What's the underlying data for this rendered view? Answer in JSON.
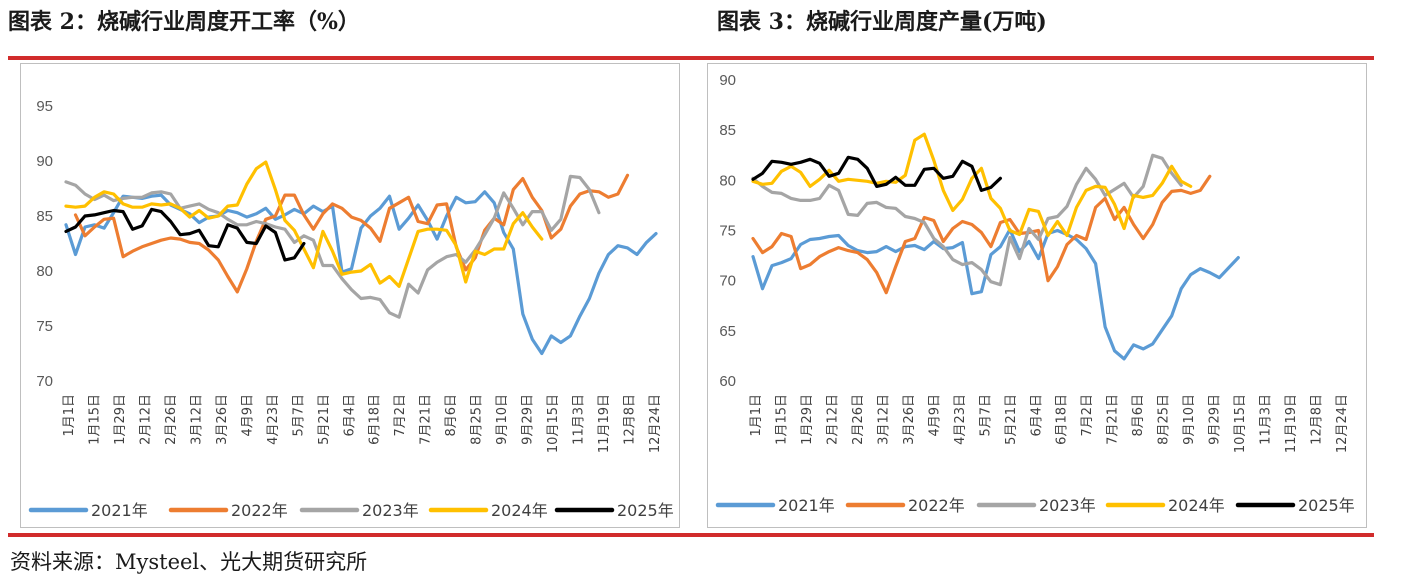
{
  "titles": {
    "left": "图表 2：烧碱行业周度开工率（%）",
    "right": "图表 3：烧碱行业周度产量(万吨)"
  },
  "source": "资料来源：Mysteel、光大期货研究所",
  "colors": {
    "rule": "#d12b2b"
  },
  "chart_data": [
    {
      "type": "line",
      "title": "图表 2：烧碱行业周度开工率（%）",
      "ylim": [
        70,
        95
      ],
      "yticks": [
        "70",
        "75",
        "80",
        "85",
        "90",
        "95"
      ],
      "grid": false,
      "legend_position": "bottom",
      "x_labels": [
        "1月1日",
        "1月15日",
        "1月29日",
        "2月12日",
        "2月26日",
        "3月12日",
        "3月26日",
        "4月9日",
        "4月23日",
        "5月7日",
        "5月21日",
        "6月4日",
        "6月18日",
        "7月2日",
        "7月21日",
        "8月6日",
        "8月25日",
        "9月10日",
        "9月29日",
        "10月15日",
        "11月3日",
        "11月19日",
        "12月8日",
        "12月24日"
      ],
      "series": [
        {
          "name": "2021年",
          "color": "#5b9bd5",
          "values": [
            84.2,
            81.5,
            84.0,
            84.2,
            83.9,
            85.3,
            86.8,
            86.7,
            86.6,
            86.8,
            86.9,
            86.0,
            85.6,
            85.2,
            84.4,
            84.9,
            85.0,
            85.5,
            85.3,
            84.9,
            85.2,
            85.7,
            84.7,
            85.1,
            85.6,
            85.2,
            85.9,
            85.4,
            85.9,
            79.9,
            80.2,
            83.9,
            85.0,
            85.7,
            86.8,
            83.8,
            84.8,
            86.0,
            84.6,
            82.9,
            85.0,
            86.7,
            86.2,
            86.3,
            87.2,
            86.2,
            83.5,
            82.0,
            76.1,
            73.8,
            72.5,
            74.1,
            73.5,
            74.1,
            75.9,
            77.5,
            79.8,
            81.5,
            82.3,
            82.1,
            81.5,
            82.6,
            83.4
          ]
        },
        {
          "name": "2022年",
          "color": "#ed7d31",
          "values": [
            null,
            85.1,
            83.2,
            84.0,
            84.7,
            84.8,
            81.3,
            81.8,
            82.2,
            82.5,
            82.8,
            83.0,
            82.9,
            82.6,
            82.5,
            81.9,
            81.0,
            79.5,
            78.1,
            80.2,
            82.7,
            84.7,
            85.0,
            86.9,
            86.9,
            85.1,
            83.8,
            85.2,
            86.1,
            85.7,
            84.9,
            84.6,
            83.9,
            82.7,
            85.7,
            86.2,
            86.7,
            84.5,
            84.3,
            86.0,
            86.1,
            82.2,
            80.1,
            81.2,
            83.7,
            84.8,
            84.2,
            87.4,
            88.4,
            86.7,
            85.5,
            83.0,
            83.8,
            85.9,
            87.0,
            87.3,
            87.2,
            86.7,
            87.0,
            88.7
          ]
        },
        {
          "name": "2023年",
          "color": "#a5a5a5",
          "values": [
            88.1,
            87.8,
            87.0,
            86.5,
            86.9,
            86.4,
            86.6,
            86.7,
            86.7,
            87.1,
            87.2,
            87.0,
            85.7,
            85.9,
            86.1,
            85.6,
            85.3,
            84.7,
            84.2,
            84.2,
            84.5,
            84.3,
            84.0,
            83.8,
            82.6,
            83.2,
            82.8,
            80.5,
            80.5,
            79.3,
            78.3,
            77.5,
            77.6,
            77.4,
            76.2,
            75.8,
            78.8,
            78.0,
            80.1,
            80.8,
            81.3,
            81.5,
            80.8,
            81.9,
            83.3,
            84.8,
            87.1,
            85.7,
            84.2,
            85.4,
            85.4,
            83.7,
            84.7,
            88.6,
            88.5,
            87.4,
            85.3
          ]
        },
        {
          "name": "2024年",
          "color": "#ffc000",
          "values": [
            85.9,
            85.8,
            85.9,
            86.7,
            87.2,
            87.0,
            86.1,
            85.8,
            85.8,
            86.1,
            86.0,
            86.1,
            85.7,
            84.9,
            85.5,
            84.8,
            85.0,
            85.9,
            86.0,
            87.9,
            89.3,
            89.9,
            87.4,
            84.6,
            83.7,
            82.0,
            80.3,
            83.6,
            81.8,
            79.7,
            79.9,
            80.0,
            80.6,
            78.9,
            79.5,
            78.6,
            81.1,
            83.6,
            83.8,
            83.8,
            83.7,
            82.3,
            79.0,
            81.8,
            81.5,
            82.0,
            82.0,
            84.3,
            85.3,
            84.0,
            82.9
          ]
        },
        {
          "name": "2025年",
          "color": "#000000",
          "values": [
            83.6,
            84.0,
            85.0,
            85.1,
            85.3,
            85.5,
            85.4,
            83.8,
            84.1,
            85.6,
            85.4,
            84.5,
            83.3,
            83.4,
            83.7,
            82.3,
            82.2,
            84.2,
            83.9,
            82.6,
            82.5,
            84.1,
            83.5,
            81.0,
            81.2,
            82.5
          ]
        }
      ]
    },
    {
      "type": "line",
      "title": "图表 3：烧碱行业周度产量(万吨)",
      "ylim": [
        60,
        90
      ],
      "yticks": [
        "60",
        "65",
        "70",
        "75",
        "80",
        "85",
        "90"
      ],
      "grid": false,
      "legend_position": "bottom",
      "x_labels": [
        "1月1日",
        "1月15日",
        "1月29日",
        "2月12日",
        "2月26日",
        "3月12日",
        "3月26日",
        "4月9日",
        "4月23日",
        "5月7日",
        "5月21日",
        "6月4日",
        "6月18日",
        "7月2日",
        "7月21日",
        "8月6日",
        "8月25日",
        "9月10日",
        "9月29日",
        "10月15日",
        "11月3日",
        "11月19日",
        "12月8日",
        "12月24日"
      ],
      "series": [
        {
          "name": "2021年",
          "color": "#5b9bd5",
          "values": [
            72.4,
            69.2,
            71.5,
            71.8,
            72.2,
            73.6,
            74.1,
            74.2,
            74.4,
            74.5,
            73.5,
            73.0,
            72.8,
            72.9,
            73.4,
            72.9,
            73.4,
            73.5,
            73.1,
            73.9,
            73.2,
            73.3,
            73.8,
            68.7,
            68.9,
            72.6,
            73.4,
            75.1,
            72.9,
            73.9,
            72.2,
            74.7,
            75.0,
            74.6,
            74.1,
            73.2,
            71.7,
            65.4,
            63.0,
            62.2,
            63.6,
            63.2,
            63.7,
            65.1,
            66.5,
            69.2,
            70.6,
            71.2,
            70.8,
            70.3,
            71.3,
            72.3
          ]
        },
        {
          "name": "2022年",
          "color": "#ed7d31",
          "values": [
            74.2,
            72.8,
            73.4,
            74.7,
            74.4,
            71.2,
            71.6,
            72.4,
            72.9,
            73.3,
            73.0,
            72.8,
            72.1,
            70.8,
            68.8,
            71.4,
            73.9,
            74.2,
            76.3,
            76.0,
            73.9,
            75.2,
            75.9,
            75.6,
            74.8,
            73.4,
            75.8,
            76.1,
            74.7,
            74.8,
            75.0,
            70.0,
            71.4,
            73.6,
            74.5,
            74.1,
            77.3,
            78.2,
            76.1,
            77.3,
            75.6,
            74.2,
            75.6,
            77.8,
            78.9,
            79.0,
            78.7,
            79.0,
            80.4
          ]
        },
        {
          "name": "2023年",
          "color": "#a5a5a5",
          "values": [
            80.2,
            79.4,
            78.8,
            78.7,
            78.2,
            78.0,
            78.0,
            78.2,
            79.5,
            79.0,
            76.6,
            76.5,
            77.7,
            77.8,
            77.3,
            77.2,
            76.4,
            76.2,
            75.8,
            74.2,
            73.4,
            72.1,
            71.6,
            71.8,
            71.1,
            69.9,
            69.6,
            74.3,
            72.2,
            75.2,
            74.1,
            76.2,
            76.4,
            77.4,
            79.6,
            81.2,
            80.1,
            78.5,
            79.1,
            79.7,
            78.3,
            79.4,
            82.5,
            82.2,
            80.7,
            79.5
          ]
        },
        {
          "name": "2024年",
          "color": "#ffc000",
          "values": [
            79.9,
            79.6,
            79.7,
            80.9,
            81.4,
            80.8,
            79.4,
            80.1,
            81.0,
            79.9,
            80.1,
            80.0,
            79.9,
            79.7,
            79.9,
            79.8,
            80.5,
            84.0,
            84.6,
            82.0,
            79.0,
            77.0,
            78.1,
            80.2,
            81.2,
            78.2,
            77.2,
            75.0,
            74.6,
            77.1,
            76.9,
            74.5,
            75.9,
            74.5,
            77.3,
            79.0,
            79.4,
            79.3,
            77.6,
            75.2,
            78.5,
            78.3,
            78.5,
            79.7,
            81.4,
            79.9,
            79.4
          ]
        },
        {
          "name": "2025年",
          "color": "#000000",
          "values": [
            80.1,
            80.7,
            81.9,
            81.8,
            81.6,
            81.8,
            82.1,
            81.7,
            80.4,
            80.7,
            82.3,
            82.1,
            81.2,
            79.4,
            79.6,
            80.3,
            79.5,
            79.5,
            81.1,
            81.2,
            80.2,
            80.4,
            81.9,
            81.4,
            79.0,
            79.3,
            80.2
          ]
        }
      ]
    }
  ]
}
